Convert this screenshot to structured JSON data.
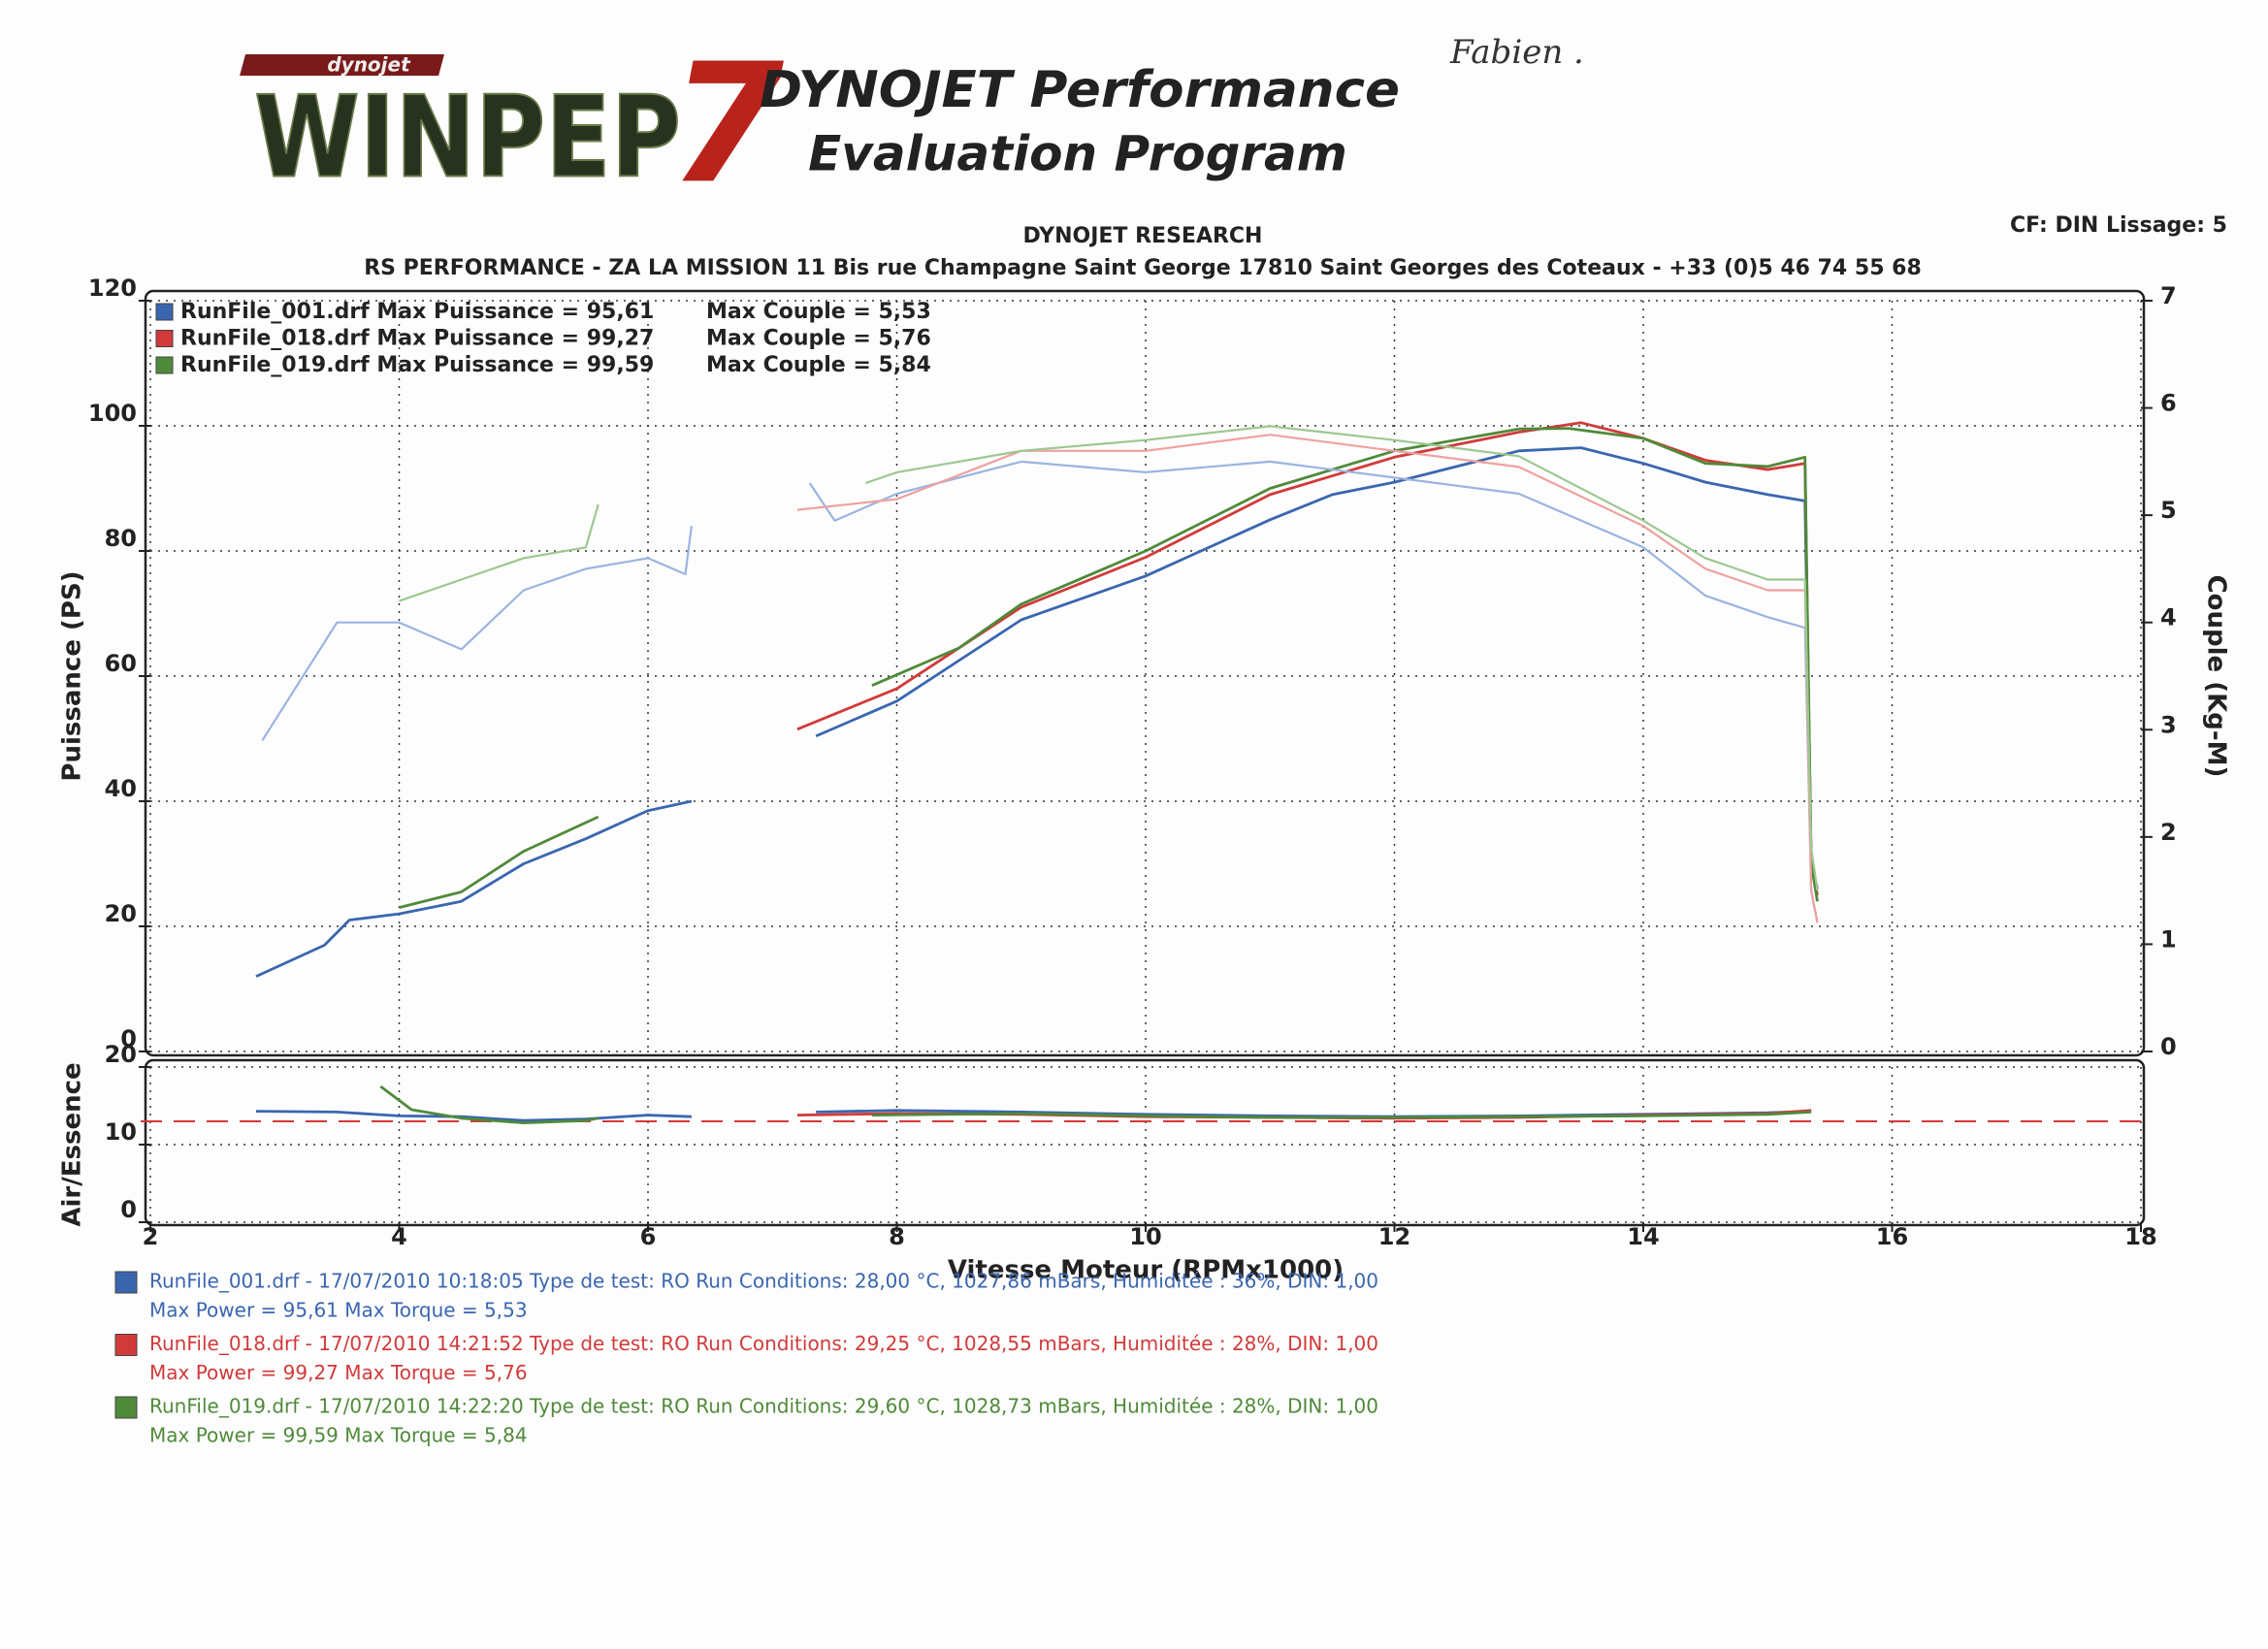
{
  "header": {
    "brand": "dynojet",
    "logo": "WINPEP",
    "logo_number": "7",
    "title_line1": "DYNOJET Performance",
    "title_line2": "Evaluation Program",
    "company": "DYNOJET RESEARCH",
    "address": "RS PERFORMANCE - ZA LA MISSION 11 Bis rue Champagne Saint George 17810 Saint Georges des Coteaux - +33 (0)5 46 74 55 68",
    "settings": "CF: DIN  Lissage: 5",
    "handwriting": "Fabien ."
  },
  "chart_data": [
    {
      "type": "line",
      "ylabel": "Puissance (PS)",
      "y2label": "Couple (Kg-M)",
      "xlim": [
        2,
        18
      ],
      "xticks": [
        2,
        4,
        6,
        8,
        10,
        12,
        14,
        16,
        18
      ],
      "ylim": [
        0,
        120
      ],
      "yticks": [
        0,
        20,
        40,
        60,
        80,
        100,
        120
      ],
      "y2lim": [
        0,
        7
      ],
      "y2ticks": [
        0,
        1,
        2,
        3,
        4,
        5,
        6,
        7
      ],
      "grid": true,
      "series": [
        {
          "name": "RunFile_001.drf Max Puissance = 95,61",
          "color": "#3a66b0",
          "x": [
            2.85,
            3.4,
            3.6,
            4.0,
            4.5,
            5.0,
            5.5,
            6.0,
            6.35,
            null,
            7.35,
            8,
            9,
            10,
            11,
            11.5,
            12,
            12.5,
            13,
            13.5,
            14,
            14.5,
            15,
            15.3,
            15.35,
            15.4
          ],
          "values": [
            12,
            17,
            21,
            22,
            24,
            30,
            34,
            38.5,
            40,
            null,
            50.4,
            56,
            69,
            76,
            85,
            89,
            91,
            93.5,
            96,
            96.5,
            94,
            91,
            89,
            88,
            30,
            26
          ]
        },
        {
          "name": "RunFile_018.drf Max Puissance = 99,27",
          "color": "#d23a3a",
          "x": [
            7.2,
            8,
            9,
            10,
            11,
            12,
            13,
            13.5,
            14,
            14.5,
            15,
            15.3,
            15.35,
            15.4
          ],
          "values": [
            51.5,
            58,
            71,
            79,
            89,
            95,
            99,
            100.5,
            98,
            94.5,
            93,
            94,
            30,
            25
          ]
        },
        {
          "name": "RunFile_019.drf Max Puissance = 99,59",
          "color": "#4f8a3a",
          "x": [
            4.0,
            4.5,
            5.0,
            5.6,
            null,
            7.8,
            8.5,
            9,
            10,
            11,
            12,
            13,
            13.4,
            14,
            14.5,
            15,
            15.3,
            15.35,
            15.4
          ],
          "values": [
            23,
            25.5,
            32,
            37.5,
            null,
            58.5,
            64.5,
            71.5,
            80,
            90,
            96,
            99.5,
            99.6,
            98,
            94,
            93.5,
            95,
            30,
            24
          ]
        },
        {
          "name": "Max Couple = 5,53",
          "color": "#9ab4e0",
          "axis": "y2",
          "x": [
            2.9,
            3.5,
            4.0,
            4.5,
            5.0,
            5.5,
            6.0,
            6.3,
            6.35,
            null,
            7.3,
            7.5,
            8,
            9,
            10,
            11,
            12,
            13,
            14,
            14.5,
            15,
            15.3,
            15.35,
            15.4
          ],
          "values": [
            2.9,
            4.0,
            4.0,
            3.75,
            4.3,
            4.5,
            4.6,
            4.45,
            4.9,
            null,
            5.3,
            4.95,
            5.2,
            5.5,
            5.4,
            5.5,
            5.35,
            5.2,
            4.7,
            4.25,
            4.05,
            3.95,
            1.5,
            1.2
          ]
        },
        {
          "name": "Max Couple = 5,76",
          "color": "#f0a0a0",
          "axis": "y2",
          "x": [
            7.2,
            8,
            9,
            10,
            11,
            12,
            13,
            14,
            14.5,
            15,
            15.3,
            15.35,
            15.4
          ],
          "values": [
            5.05,
            5.15,
            5.6,
            5.6,
            5.75,
            5.6,
            5.45,
            4.9,
            4.5,
            4.3,
            4.3,
            1.5,
            1.2
          ]
        },
        {
          "name": "Max Couple = 5,84",
          "color": "#9cc890",
          "axis": "y2",
          "x": [
            4.0,
            4.5,
            5.0,
            5.5,
            5.6,
            null,
            7.75,
            8,
            9,
            10,
            11,
            12,
            13,
            14,
            14.5,
            15,
            15.3,
            15.35,
            15.4
          ],
          "values": [
            4.2,
            4.4,
            4.6,
            4.7,
            5.1,
            null,
            5.3,
            5.4,
            5.6,
            5.7,
            5.83,
            5.7,
            5.55,
            4.95,
            4.6,
            4.4,
            4.4,
            1.9,
            1.5
          ]
        }
      ]
    },
    {
      "type": "line",
      "ylabel": "Air/Essence",
      "xlabel": "Vitesse Moteur (RPMx1000)",
      "xlim": [
        2,
        18
      ],
      "xticks": [
        2,
        4,
        6,
        8,
        10,
        12,
        14,
        16,
        18
      ],
      "ylim": [
        0,
        20
      ],
      "yticks": [
        0,
        10,
        20
      ],
      "grid": true,
      "reference_line": {
        "value": 13,
        "color": "#d23a3a"
      },
      "series": [
        {
          "color": "#3a66b0",
          "x": [
            2.85,
            3.5,
            4.0,
            4.5,
            5.0,
            5.5,
            6.0,
            6.35,
            null,
            7.35,
            8,
            9,
            10,
            11,
            12,
            13,
            14,
            15,
            15.35
          ],
          "values": [
            14.3,
            14.2,
            13.7,
            13.6,
            13.1,
            13.3,
            13.8,
            13.6,
            null,
            14.2,
            14.4,
            14.2,
            13.9,
            13.7,
            13.6,
            13.7,
            13.9,
            14.1,
            14.3
          ]
        },
        {
          "color": "#d23a3a",
          "x": [
            7.2,
            8,
            9,
            10,
            11,
            12,
            13,
            14,
            15,
            15.35
          ],
          "values": [
            13.8,
            14,
            13.9,
            13.6,
            13.5,
            13.4,
            13.5,
            13.8,
            14,
            14.4
          ]
        },
        {
          "color": "#4f8a3a",
          "x": [
            3.85,
            4.1,
            4.5,
            5.0,
            5.5,
            5.6,
            null,
            7.8,
            9,
            10,
            11,
            12,
            13,
            14,
            15,
            15.35
          ],
          "values": [
            17.5,
            14.5,
            13.4,
            12.8,
            13.1,
            13.4,
            null,
            13.8,
            14,
            13.7,
            13.5,
            13.5,
            13.6,
            13.7,
            13.9,
            14.2
          ]
        }
      ]
    }
  ],
  "footer": [
    {
      "color": "#3a66b0",
      "line1": "RunFile_001.drf - 17/07/2010 10:18:05  Type de test: RO  Run Conditions: 28,00 °C, 1027,86 mBars,  Humiditée : 36%, DIN: 1,00",
      "line2": "Max Power = 95,61  Max Torque = 5,53"
    },
    {
      "color": "#d23a3a",
      "line1": "RunFile_018.drf - 17/07/2010 14:21:52  Type de test: RO  Run Conditions: 29,25 °C, 1028,55 mBars,  Humiditée : 28%, DIN: 1,00",
      "line2": "Max Power = 99,27  Max Torque = 5,76"
    },
    {
      "color": "#4f8a3a",
      "line1": "RunFile_019.drf - 17/07/2010 14:22:20  Type de test: RO  Run Conditions: 29,60 °C, 1028,73 mBars,  Humiditée : 28%, DIN: 1,00",
      "line2": "Max Power = 99,59  Max Torque = 5,84"
    }
  ]
}
